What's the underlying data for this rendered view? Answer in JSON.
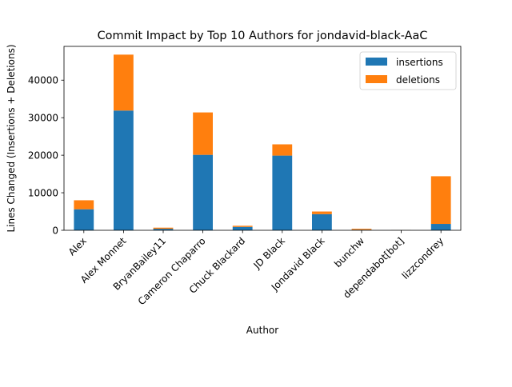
{
  "chart_data": {
    "type": "bar",
    "stacked": true,
    "title": "Commit Impact by Top 10 Authors for jondavid-black-AaC",
    "xlabel": "Author",
    "ylabel": "Lines Changed (Insertions + Deletions)",
    "ylim": [
      0,
      49000
    ],
    "yticks": [
      0,
      10000,
      20000,
      30000,
      40000
    ],
    "ytick_labels": [
      "0",
      "10000",
      "20000",
      "30000",
      "40000"
    ],
    "grid": false,
    "legend": {
      "position": "top-right"
    },
    "categories": [
      "Alex",
      "Alex Monnet",
      "BryanBailey11",
      "Cameron Chaparro",
      "Chuck Blackard",
      "JD Black",
      "Jondavid Black",
      "bunchw",
      "dependabot[bot]",
      "lizzcondrey"
    ],
    "series": [
      {
        "name": "insertions",
        "color": "#1f77b4",
        "values": [
          5600,
          31900,
          400,
          20100,
          900,
          19900,
          4300,
          150,
          30,
          1700
        ]
      },
      {
        "name": "deletions",
        "color": "#ff7f0e",
        "values": [
          2400,
          14900,
          300,
          11300,
          300,
          3000,
          700,
          250,
          20,
          12700
        ]
      }
    ]
  }
}
